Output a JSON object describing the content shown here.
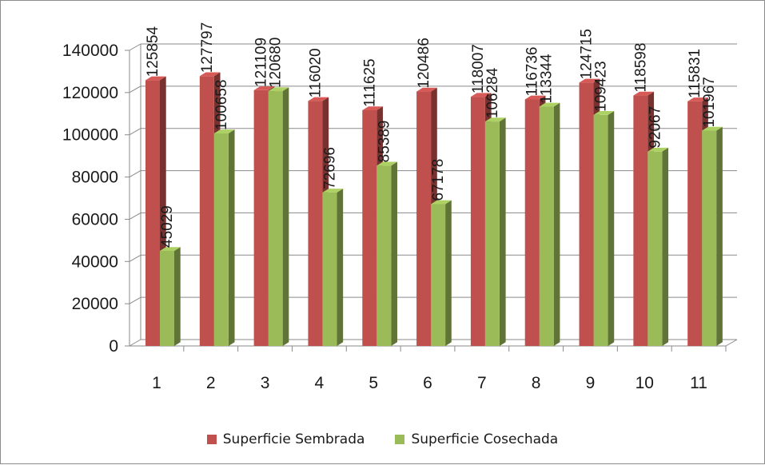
{
  "chart_data": {
    "type": "bar",
    "style": "3d-clustered-column",
    "categories": [
      "1",
      "2",
      "3",
      "4",
      "5",
      "6",
      "7",
      "8",
      "9",
      "10",
      "11"
    ],
    "series": [
      {
        "name": "Superficie Sembrada",
        "color": "#c0504d",
        "values": [
          125854,
          127797,
          121109,
          116020,
          111625,
          120486,
          118007,
          116736,
          124715,
          118598,
          115831
        ]
      },
      {
        "name": "Superficie Cosechada",
        "color": "#9bbb59",
        "values": [
          45029,
          100658,
          120680,
          72696,
          85389,
          67178,
          106284,
          113344,
          109423,
          92067,
          101967
        ]
      }
    ],
    "ylim": [
      0,
      140000
    ],
    "yticks": [
      0,
      20000,
      40000,
      60000,
      80000,
      100000,
      120000,
      140000
    ],
    "grid": true,
    "data_labels": true,
    "legend_position": "bottom"
  }
}
